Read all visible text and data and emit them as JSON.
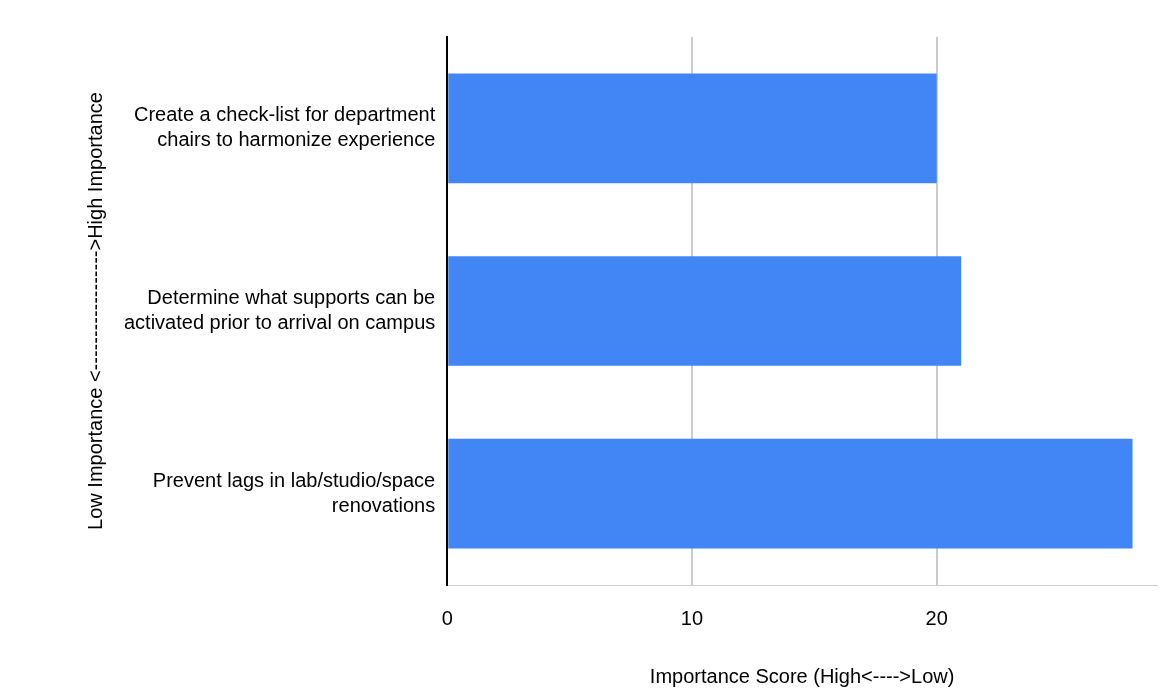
{
  "chart_data": {
    "type": "bar",
    "orientation": "horizontal",
    "xlabel": "Importance Score (High<---->Low)",
    "ylabel": "Low Importance <------------------>High Importance",
    "categories": [
      "Create a check-list for department chairs to harmonize experience",
      "Determine what supports can be activated prior to arrival on campus",
      "Prevent lags in lab/studio/space renovations"
    ],
    "values": [
      20,
      21,
      28
    ],
    "color": "#4285f4",
    "xlim": [
      0,
      29
    ],
    "xticks": [
      0,
      10,
      20
    ],
    "grid": "x",
    "legend": false
  }
}
